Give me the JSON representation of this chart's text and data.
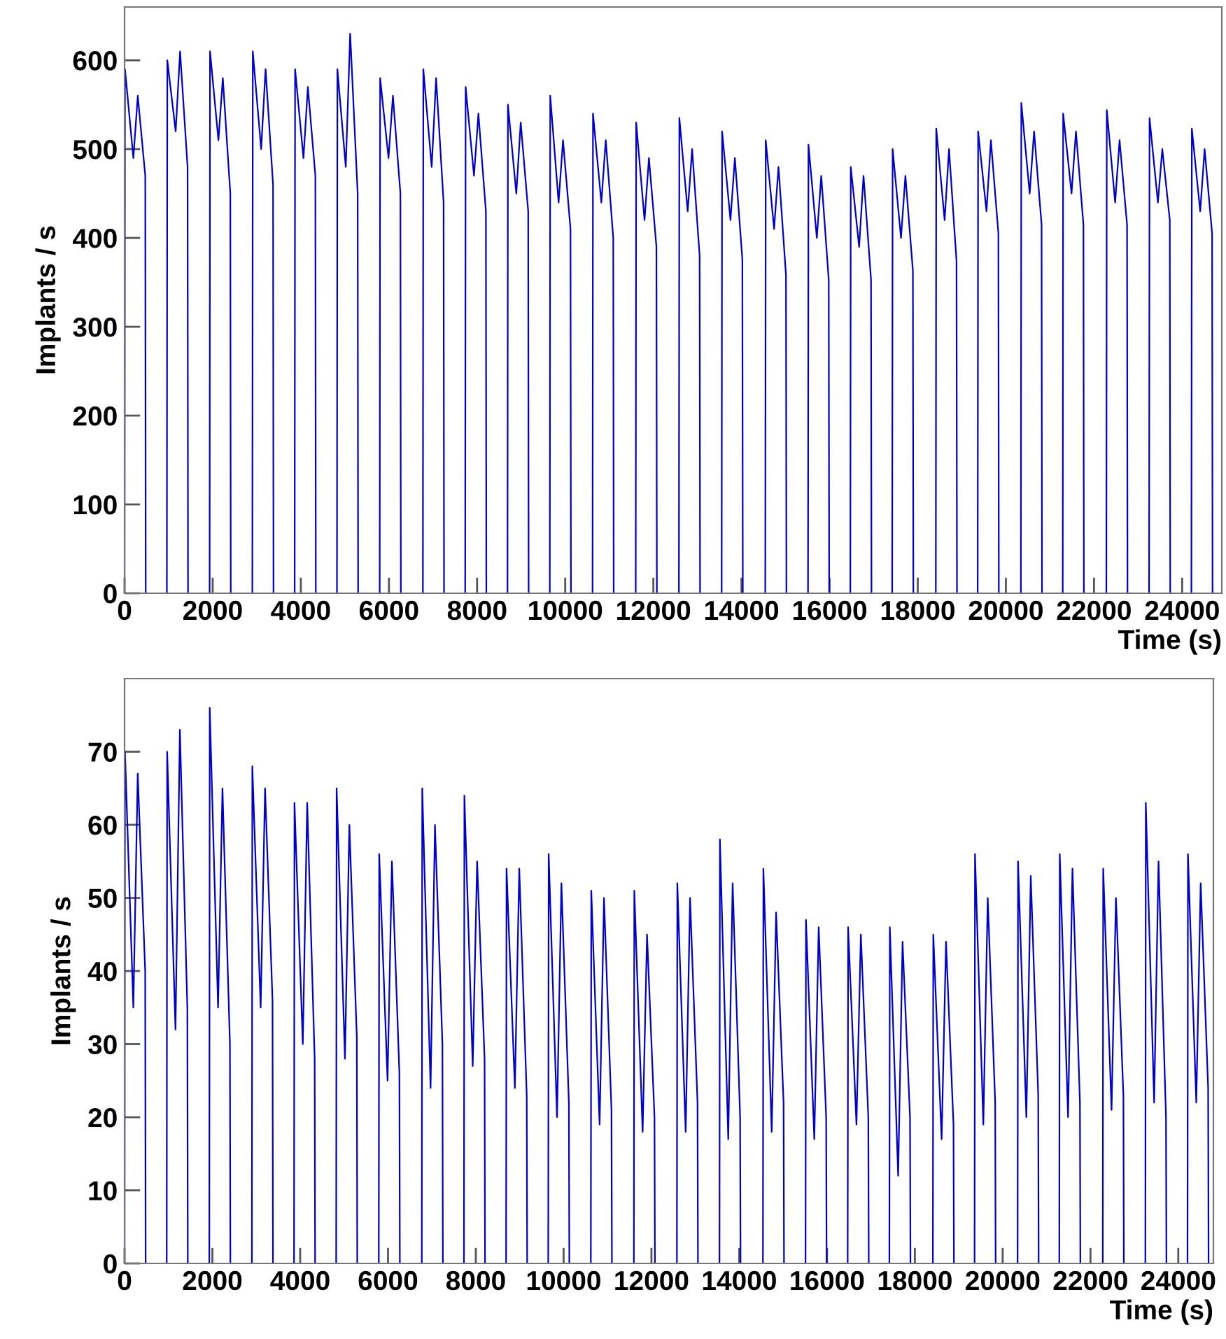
{
  "chart_data": [
    {
      "type": "line",
      "xlabel": "Time (s)",
      "ylabel": "Implants / s",
      "x": [
        0,
        10,
        200,
        300,
        470,
        480,
        960,
        970,
        1160,
        1260,
        1430,
        1440,
        1930,
        1940,
        2130,
        2230,
        2400,
        2410,
        2900,
        2910,
        3100,
        3200,
        3370,
        3380,
        3860,
        3870,
        4060,
        4160,
        4330,
        4340,
        4820,
        4830,
        5020,
        5120,
        5290,
        5300,
        5790,
        5800,
        5990,
        6090,
        6260,
        6270,
        6770,
        6780,
        6970,
        7070,
        7240,
        7250,
        7730,
        7740,
        7930,
        8030,
        8200,
        8210,
        8690,
        8700,
        8890,
        8990,
        9160,
        9170,
        9650,
        9660,
        9850,
        9950,
        10120,
        10130,
        10620,
        10630,
        10820,
        10920,
        11090,
        11100,
        11600,
        11610,
        11800,
        11900,
        12070,
        12080,
        12580,
        12590,
        12780,
        12880,
        13050,
        13060,
        13550,
        13560,
        13750,
        13850,
        14020,
        14030,
        14540,
        14550,
        14740,
        14840,
        15010,
        15020,
        15510,
        15520,
        15710,
        15810,
        15980,
        15990,
        16470,
        16480,
        16670,
        16770,
        16940,
        16950,
        17420,
        17430,
        17620,
        17720,
        17890,
        17900,
        18410,
        18420,
        18610,
        18710,
        18880,
        18890,
        19360,
        19370,
        19560,
        19660,
        19830,
        19840,
        20340,
        20350,
        20540,
        20640,
        20810,
        20820,
        21290,
        21300,
        21490,
        21590,
        21760,
        21770,
        22280,
        22290,
        22480,
        22580,
        22750,
        22760,
        23250,
        23260,
        23450,
        23550,
        23720,
        23730,
        24210,
        24220,
        24410,
        24510,
        24680,
        24690
      ],
      "series": [
        {
          "color": "#0000cc",
          "values": [
            0,
            590,
            490,
            560,
            470,
            0,
            0,
            600,
            520,
            610,
            480,
            0,
            0,
            610,
            510,
            580,
            450,
            0,
            0,
            610,
            500,
            590,
            460,
            0,
            0,
            590,
            490,
            570,
            470,
            0,
            0,
            590,
            480,
            630,
            450,
            0,
            0,
            580,
            490,
            560,
            450,
            0,
            0,
            590,
            480,
            580,
            440,
            0,
            0,
            570,
            470,
            540,
            430,
            0,
            0,
            550,
            450,
            530,
            430,
            0,
            0,
            560,
            440,
            510,
            410,
            0,
            0,
            540,
            440,
            510,
            400,
            0,
            0,
            530,
            420,
            490,
            390,
            0,
            0,
            535,
            430,
            500,
            380,
            0,
            0,
            520,
            420,
            490,
            376,
            0,
            0,
            510,
            410,
            480,
            358,
            0,
            0,
            505,
            400,
            470,
            353,
            0,
            0,
            480,
            390,
            470,
            353,
            0,
            0,
            500,
            400,
            470,
            363,
            0,
            0,
            523,
            420,
            500,
            374,
            0,
            0,
            520,
            430,
            510,
            405,
            0,
            0,
            552,
            450,
            520,
            415,
            0,
            0,
            540,
            450,
            520,
            415,
            0,
            0,
            544,
            440,
            510,
            415,
            0,
            0,
            535,
            440,
            500,
            420,
            0,
            0,
            523,
            430,
            500,
            405,
            0
          ]
        }
      ],
      "xlim": [
        0,
        24900
      ],
      "xticks": [
        0,
        2000,
        4000,
        6000,
        8000,
        10000,
        12000,
        14000,
        16000,
        18000,
        20000,
        22000,
        24000
      ],
      "ylim": [
        0,
        660
      ],
      "yticks": [
        0,
        100,
        200,
        300,
        400,
        500,
        600
      ],
      "grid": false,
      "marker": "none",
      "line_style": "solid"
    },
    {
      "type": "line",
      "xlabel": "Time (s)",
      "ylabel": "Implants / s",
      "x": [
        0,
        10,
        200,
        300,
        470,
        480,
        960,
        970,
        1160,
        1260,
        1430,
        1440,
        1930,
        1940,
        2130,
        2230,
        2400,
        2410,
        2900,
        2910,
        3100,
        3200,
        3370,
        3380,
        3860,
        3870,
        4060,
        4160,
        4330,
        4340,
        4820,
        4830,
        5020,
        5120,
        5290,
        5300,
        5790,
        5800,
        5990,
        6090,
        6260,
        6270,
        6770,
        6780,
        6970,
        7070,
        7240,
        7250,
        7730,
        7740,
        7930,
        8030,
        8200,
        8210,
        8690,
        8700,
        8890,
        8990,
        9160,
        9170,
        9650,
        9660,
        9850,
        9950,
        10120,
        10130,
        10620,
        10630,
        10820,
        10920,
        11090,
        11100,
        11600,
        11610,
        11800,
        11900,
        12070,
        12080,
        12580,
        12590,
        12780,
        12880,
        13050,
        13060,
        13550,
        13560,
        13750,
        13850,
        14020,
        14030,
        14540,
        14550,
        14740,
        14840,
        15010,
        15020,
        15510,
        15520,
        15710,
        15810,
        15980,
        15990,
        16470,
        16480,
        16670,
        16770,
        16940,
        16950,
        17420,
        17430,
        17620,
        17720,
        17890,
        17900,
        18410,
        18420,
        18610,
        18710,
        18880,
        18890,
        19360,
        19370,
        19560,
        19660,
        19830,
        19840,
        20340,
        20350,
        20540,
        20640,
        20810,
        20820,
        21290,
        21300,
        21490,
        21590,
        21760,
        21770,
        22280,
        22290,
        22480,
        22580,
        22750,
        22760,
        23250,
        23260,
        23450,
        23550,
        23720,
        23730,
        24210,
        24220,
        24410,
        24510,
        24680,
        24690
      ],
      "series": [
        {
          "color": "#0000cc",
          "values": [
            0,
            70,
            35,
            67,
            40,
            0,
            0,
            70,
            32,
            73,
            35,
            0,
            0,
            76,
            35,
            65,
            30,
            0,
            0,
            68,
            35,
            65,
            36,
            0,
            0,
            63,
            30,
            63,
            28,
            0,
            0,
            65,
            28,
            60,
            31,
            0,
            0,
            56,
            25,
            55,
            26,
            0,
            0,
            65,
            24,
            60,
            30,
            0,
            0,
            64,
            27,
            55,
            28,
            0,
            0,
            54,
            24,
            54,
            23,
            0,
            0,
            56,
            20,
            52,
            22,
            0,
            0,
            51,
            19,
            50,
            21,
            0,
            0,
            51,
            18,
            45,
            20,
            0,
            0,
            52,
            18,
            50,
            22,
            0,
            0,
            58,
            17,
            52,
            20,
            0,
            0,
            54,
            18,
            48,
            22,
            0,
            0,
            47,
            17,
            46,
            20,
            0,
            0,
            46,
            19,
            45,
            20,
            0,
            0,
            46,
            12,
            44,
            20,
            0,
            0,
            45,
            17,
            44,
            19,
            0,
            0,
            56,
            19,
            50,
            22,
            0,
            0,
            55,
            20,
            53,
            23,
            0,
            0,
            56,
            20,
            54,
            22,
            0,
            0,
            54,
            21,
            50,
            23,
            0,
            0,
            63,
            22,
            55,
            20,
            0,
            0,
            56,
            22,
            52,
            24,
            0
          ]
        }
      ],
      "xlim": [
        0,
        24800
      ],
      "xticks": [
        0,
        2000,
        4000,
        6000,
        8000,
        10000,
        12000,
        14000,
        16000,
        18000,
        20000,
        22000,
        24000
      ],
      "ylim": [
        0,
        80
      ],
      "yticks": [
        0,
        10,
        20,
        30,
        40,
        50,
        60,
        70
      ],
      "grid": false,
      "marker": "none",
      "line_style": "solid"
    }
  ]
}
